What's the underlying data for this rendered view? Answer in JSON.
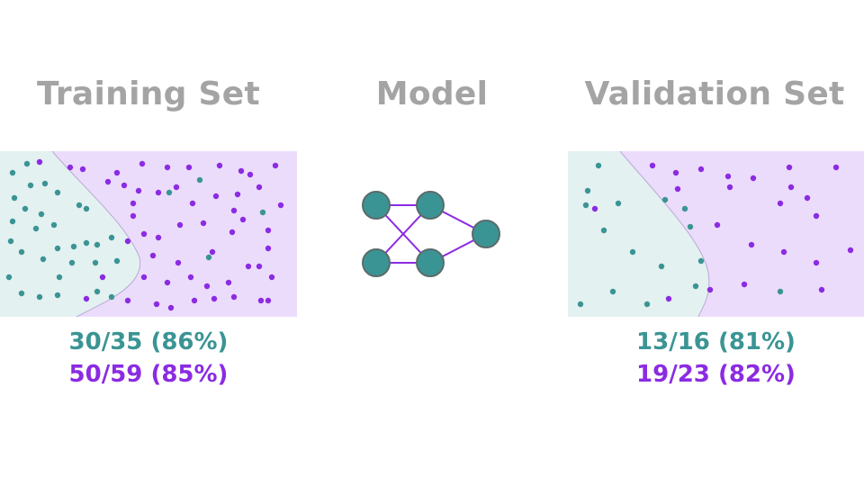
{
  "colors": {
    "teal": "#3b9494",
    "purple": "#8b2be2",
    "teal_region": "#e3f1f0",
    "purple_region": "#ecdcfb",
    "heading": "#a4a4a4"
  },
  "training": {
    "title": "Training Set",
    "teal_score": "30/35 (86%)",
    "purple_score": "50/59 (85%)"
  },
  "model": {
    "title": "Model",
    "network_layers": [
      2,
      2,
      1
    ]
  },
  "validation": {
    "title": "Validation Set",
    "teal_score": "13/16 (81%)",
    "purple_score": "19/23 (82%)"
  }
}
